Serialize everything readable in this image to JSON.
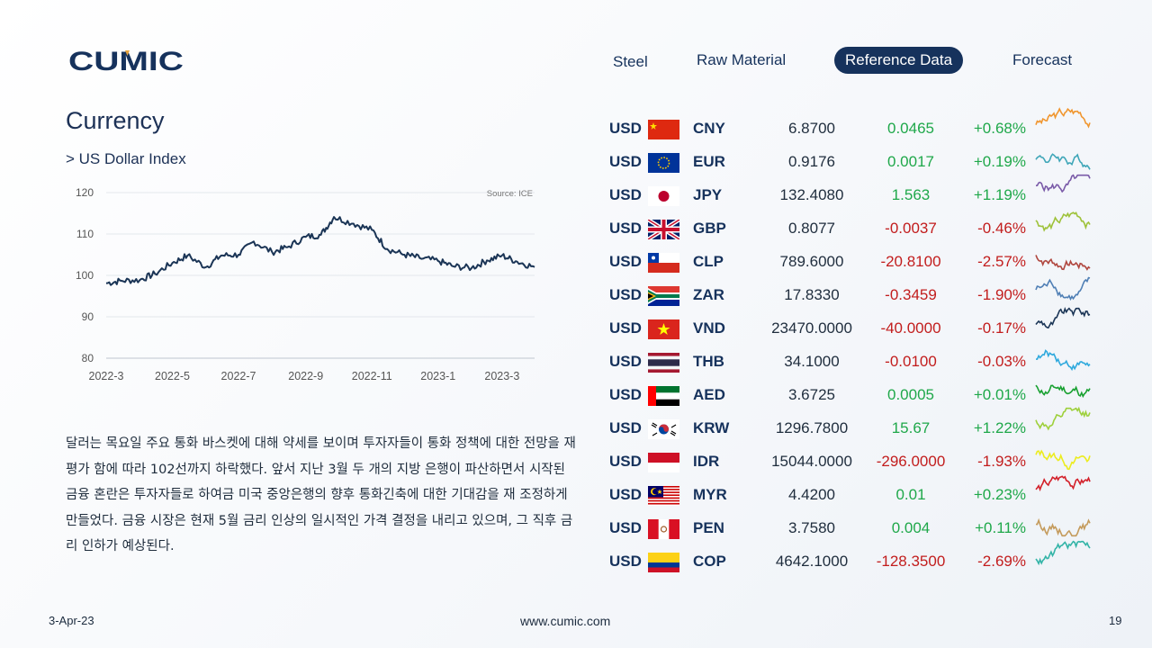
{
  "brand": {
    "logo_text": "CUMIC"
  },
  "nav": {
    "items": [
      {
        "label": "Steel",
        "active": false
      },
      {
        "label": "Raw Material",
        "active": false
      },
      {
        "label": "Reference Data",
        "active": true
      },
      {
        "label": "Forecast",
        "active": false
      }
    ]
  },
  "page": {
    "title": "Currency",
    "subtitle": "> US Dollar Index"
  },
  "chart_data": {
    "type": "line",
    "title": "",
    "source": "Source: ICE",
    "x_ticks": [
      "2022-3",
      "2022-5",
      "2022-7",
      "2022-9",
      "2022-11",
      "2023-1",
      "2023-3"
    ],
    "y_ticks": [
      120,
      110,
      100,
      90,
      80
    ],
    "ylim": [
      80,
      120
    ],
    "grid": true,
    "series": [
      {
        "x": [
          "2022-03-01",
          "2022-03-15",
          "2022-04-01",
          "2022-04-15",
          "2022-05-01",
          "2022-05-15",
          "2022-06-01",
          "2022-06-15",
          "2022-07-01",
          "2022-07-15",
          "2022-08-01",
          "2022-08-15",
          "2022-09-01",
          "2022-09-15",
          "2022-09-27",
          "2022-10-15",
          "2022-11-01",
          "2022-11-15",
          "2022-12-01",
          "2022-12-15",
          "2023-01-01",
          "2023-01-15",
          "2023-02-01",
          "2023-02-15",
          "2023-03-01",
          "2023-03-15",
          "2023-03-31"
        ],
        "values": [
          98.1,
          98.7,
          98.9,
          100.4,
          103.0,
          104.8,
          102.0,
          104.8,
          105.0,
          108.2,
          105.6,
          106.8,
          109.3,
          109.8,
          114.1,
          112.5,
          111.0,
          106.4,
          105.0,
          104.2,
          103.5,
          102.2,
          101.8,
          103.6,
          104.8,
          103.3,
          102.0
        ]
      }
    ]
  },
  "description": "달러는 목요일 주요 통화 바스켓에 대해 약세를 보이며 투자자들이 통화 정책에 대한 전망을 재평가 함에 따라 102선까지 하락했다. 앞서 지난 3월 두 개의 지방 은행이 파산하면서 시작된 금융 혼란은 투자자들로 하여금 미국 중앙은행의 향후 통화긴축에 대한 기대감을 재 조정하게 만들었다. 금융 시장은 현재 5월 금리 인상의 일시적인 가격 결정을 내리고 있으며, 그 직후 금리 인하가 예상된다.",
  "table": {
    "rows": [
      {
        "base": "USD",
        "code": "CNY",
        "flag": "cn",
        "rate": "6.8700",
        "change": "0.0465",
        "pct": "+0.68%",
        "positive": true,
        "spark_color": "#f0962f"
      },
      {
        "base": "USD",
        "code": "EUR",
        "flag": "eu",
        "rate": "0.9176",
        "change": "0.0017",
        "pct": "+0.19%",
        "positive": true,
        "spark_color": "#3fa6b8"
      },
      {
        "base": "USD",
        "code": "JPY",
        "flag": "jp",
        "rate": "132.4080",
        "change": "1.563",
        "pct": "+1.19%",
        "positive": true,
        "spark_color": "#7a5aa8"
      },
      {
        "base": "USD",
        "code": "GBP",
        "flag": "gb",
        "rate": "0.8077",
        "change": "-0.0037",
        "pct": "-0.46%",
        "positive": false,
        "spark_color": "#9ec23a"
      },
      {
        "base": "USD",
        "code": "CLP",
        "flag": "cl",
        "rate": "789.6000",
        "change": "-20.8100",
        "pct": "-2.57%",
        "positive": false,
        "spark_color": "#b0473f"
      },
      {
        "base": "USD",
        "code": "ZAR",
        "flag": "za",
        "rate": "17.8330",
        "change": "-0.3459",
        "pct": "-1.90%",
        "positive": false,
        "spark_color": "#4f7fb5"
      },
      {
        "base": "USD",
        "code": "VND",
        "flag": "vn",
        "rate": "23470.0000",
        "change": "-40.0000",
        "pct": "-0.17%",
        "positive": false,
        "spark_color": "#1b3556"
      },
      {
        "base": "USD",
        "code": "THB",
        "flag": "th",
        "rate": "34.1000",
        "change": "-0.0100",
        "pct": "-0.03%",
        "positive": false,
        "spark_color": "#2fa9dd"
      },
      {
        "base": "USD",
        "code": "AED",
        "flag": "ae",
        "rate": "3.6725",
        "change": "0.0005",
        "pct": "+0.01%",
        "positive": true,
        "spark_color": "#18a030"
      },
      {
        "base": "USD",
        "code": "KRW",
        "flag": "kr",
        "rate": "1296.7800",
        "change": "15.67",
        "pct": "+1.22%",
        "positive": true,
        "spark_color": "#9ed03c"
      },
      {
        "base": "USD",
        "code": "IDR",
        "flag": "id",
        "rate": "15044.0000",
        "change": "-296.0000",
        "pct": "-1.93%",
        "positive": false,
        "spark_color": "#ecec1e"
      },
      {
        "base": "USD",
        "code": "MYR",
        "flag": "my",
        "rate": "4.4200",
        "change": "0.01",
        "pct": "+0.23%",
        "positive": true,
        "spark_color": "#d3202a"
      },
      {
        "base": "USD",
        "code": "PEN",
        "flag": "pe",
        "rate": "3.7580",
        "change": "0.004",
        "pct": "+0.11%",
        "positive": true,
        "spark_color": "#c49b5c"
      },
      {
        "base": "USD",
        "code": "COP",
        "flag": "co",
        "rate": "4642.1000",
        "change": "-128.3500",
        "pct": "-2.69%",
        "positive": false,
        "spark_color": "#33b4a7"
      }
    ]
  },
  "footer": {
    "date": "3-Apr-23",
    "url": "www.cumic.com",
    "page": "19"
  },
  "colors": {
    "navy": "#16325c",
    "positive": "#1fa84a",
    "negative": "#c21d1d",
    "line": "#1b3556"
  }
}
